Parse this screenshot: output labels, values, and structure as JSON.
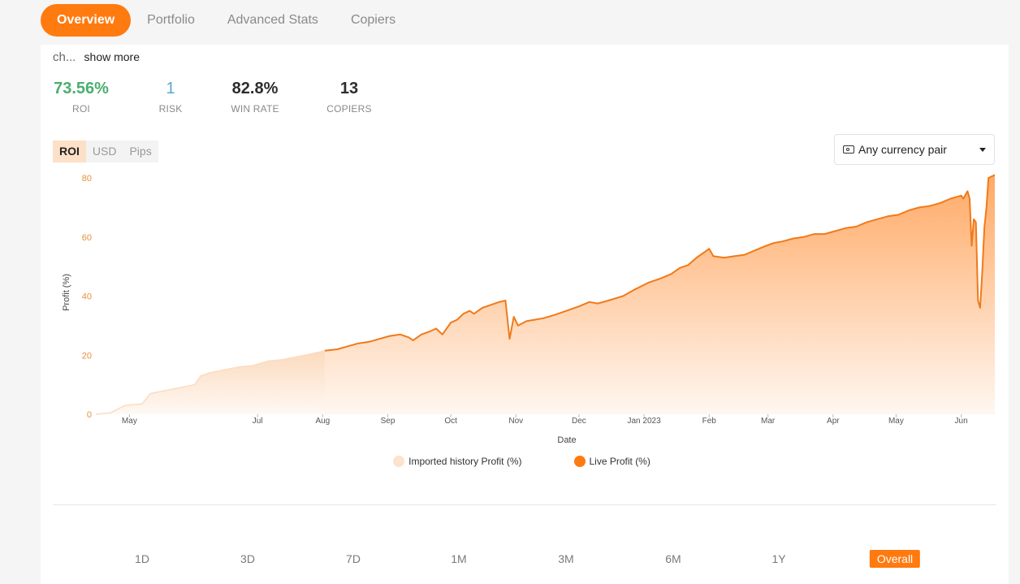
{
  "tabs": [
    {
      "label": "Overview",
      "active": true
    },
    {
      "label": "Portfolio",
      "active": false
    },
    {
      "label": "Advanced Stats",
      "active": false
    },
    {
      "label": "Copiers",
      "active": false
    }
  ],
  "description": {
    "truncated": "ch...",
    "show_more": "show more"
  },
  "stats": {
    "roi": {
      "value": "73.56%",
      "label": "ROI"
    },
    "risk": {
      "value": "1",
      "label": "RISK"
    },
    "win_rate": {
      "value": "82.8%",
      "label": "WIN RATE"
    },
    "copiers": {
      "value": "13",
      "label": "COPIERS"
    }
  },
  "metric_toggle": [
    {
      "label": "ROI",
      "active": true
    },
    {
      "label": "USD",
      "active": false
    },
    {
      "label": "Pips",
      "active": false
    }
  ],
  "currency_select": {
    "value": "Any currency pair",
    "icon": "cash-icon"
  },
  "colors": {
    "accent": "#ff7a0f",
    "imported": "#fde3cc",
    "roi": "#4cae6e",
    "risk": "#58a6d8"
  },
  "chart_data": {
    "type": "area",
    "xlabel": "Date",
    "ylabel": "Profit (%)",
    "ylim": [
      0,
      80
    ],
    "yticks": [
      0,
      20,
      40,
      60,
      80
    ],
    "x_tick_labels": [
      "May",
      "Jul",
      "Aug",
      "Sep",
      "Oct",
      "Nov",
      "Dec",
      "Jan 2023",
      "Feb",
      "Mar",
      "Apr",
      "May",
      "Jun"
    ],
    "x_tick_dates": [
      "2022-05-01",
      "2022-07-01",
      "2022-08-01",
      "2022-09-01",
      "2022-10-01",
      "2022-11-01",
      "2022-12-01",
      "2023-01-01",
      "2023-02-01",
      "2023-03-01",
      "2023-04-01",
      "2023-05-01",
      "2023-06-01"
    ],
    "x_range": [
      "2022-04-15",
      "2023-06-17"
    ],
    "series": [
      {
        "name": "Imported history Profit (%)",
        "color": "#fde3cc",
        "points": [
          [
            "2022-04-15",
            0
          ],
          [
            "2022-04-22",
            0.5
          ],
          [
            "2022-04-29",
            3
          ],
          [
            "2022-05-07",
            3.5
          ],
          [
            "2022-05-11",
            7
          ],
          [
            "2022-05-18",
            8
          ],
          [
            "2022-05-25",
            9
          ],
          [
            "2022-06-01",
            10
          ],
          [
            "2022-06-04",
            13
          ],
          [
            "2022-06-08",
            14
          ],
          [
            "2022-06-15",
            15
          ],
          [
            "2022-06-22",
            16
          ],
          [
            "2022-06-29",
            16.5
          ],
          [
            "2022-07-06",
            18
          ],
          [
            "2022-07-13",
            18.5
          ],
          [
            "2022-07-20",
            19.5
          ],
          [
            "2022-07-27",
            20.5
          ],
          [
            "2022-08-02",
            21.5
          ]
        ]
      },
      {
        "name": "Live Profit (%)",
        "color": "#ff7a0f",
        "points": [
          [
            "2022-08-02",
            21.5
          ],
          [
            "2022-08-08",
            22
          ],
          [
            "2022-08-13",
            23
          ],
          [
            "2022-08-18",
            24
          ],
          [
            "2022-08-23",
            24.5
          ],
          [
            "2022-08-28",
            25.5
          ],
          [
            "2022-09-02",
            26.5
          ],
          [
            "2022-09-07",
            27
          ],
          [
            "2022-09-11",
            26
          ],
          [
            "2022-09-13",
            25
          ],
          [
            "2022-09-17",
            27
          ],
          [
            "2022-09-21",
            28
          ],
          [
            "2022-09-24",
            29
          ],
          [
            "2022-09-27",
            27
          ],
          [
            "2022-10-01",
            31
          ],
          [
            "2022-10-04",
            32
          ],
          [
            "2022-10-07",
            34
          ],
          [
            "2022-10-10",
            35
          ],
          [
            "2022-10-12",
            34
          ],
          [
            "2022-10-16",
            36
          ],
          [
            "2022-10-20",
            37
          ],
          [
            "2022-10-24",
            38
          ],
          [
            "2022-10-27",
            38.5
          ],
          [
            "2022-10-29",
            25.5
          ],
          [
            "2022-10-31",
            33
          ],
          [
            "2022-11-02",
            30
          ],
          [
            "2022-11-06",
            31.5
          ],
          [
            "2022-11-10",
            32
          ],
          [
            "2022-11-14",
            32.5
          ],
          [
            "2022-11-19",
            33.5
          ],
          [
            "2022-11-25",
            35
          ],
          [
            "2022-12-01",
            36.5
          ],
          [
            "2022-12-06",
            38
          ],
          [
            "2022-12-10",
            37.5
          ],
          [
            "2022-12-15",
            38.5
          ],
          [
            "2022-12-22",
            40
          ],
          [
            "2022-12-27",
            42
          ],
          [
            "2023-01-03",
            44.5
          ],
          [
            "2023-01-09",
            46
          ],
          [
            "2023-01-14",
            47.5
          ],
          [
            "2023-01-18",
            49.5
          ],
          [
            "2023-01-22",
            50.5
          ],
          [
            "2023-01-26",
            53
          ],
          [
            "2023-01-30",
            55
          ],
          [
            "2023-02-01",
            56
          ],
          [
            "2023-02-03",
            53.5
          ],
          [
            "2023-02-08",
            53
          ],
          [
            "2023-02-13",
            53.5
          ],
          [
            "2023-02-18",
            54
          ],
          [
            "2023-02-23",
            55.5
          ],
          [
            "2023-02-28",
            57
          ],
          [
            "2023-03-04",
            58
          ],
          [
            "2023-03-08",
            58.5
          ],
          [
            "2023-03-13",
            59.5
          ],
          [
            "2023-03-18",
            60
          ],
          [
            "2023-03-23",
            61
          ],
          [
            "2023-03-28",
            61
          ],
          [
            "2023-04-02",
            62
          ],
          [
            "2023-04-07",
            63
          ],
          [
            "2023-04-12",
            63.5
          ],
          [
            "2023-04-17",
            65
          ],
          [
            "2023-04-22",
            66
          ],
          [
            "2023-04-27",
            67
          ],
          [
            "2023-05-02",
            67.5
          ],
          [
            "2023-05-07",
            69
          ],
          [
            "2023-05-12",
            70
          ],
          [
            "2023-05-17",
            70.5
          ],
          [
            "2023-05-22",
            71.5
          ],
          [
            "2023-05-27",
            73
          ],
          [
            "2023-06-01",
            74
          ],
          [
            "2023-06-02",
            73
          ],
          [
            "2023-06-04",
            75.5
          ],
          [
            "2023-06-05",
            73
          ],
          [
            "2023-06-06",
            57
          ],
          [
            "2023-06-07",
            66
          ],
          [
            "2023-06-08",
            65
          ],
          [
            "2023-06-09",
            38.5
          ],
          [
            "2023-06-10",
            36
          ],
          [
            "2023-06-11",
            48
          ],
          [
            "2023-06-12",
            63
          ],
          [
            "2023-06-13",
            70
          ],
          [
            "2023-06-14",
            80
          ],
          [
            "2023-06-17",
            81
          ]
        ]
      }
    ]
  },
  "legend": [
    {
      "label": "Imported history Profit (%)",
      "color": "#fde3cc"
    },
    {
      "label": "Live Profit (%)",
      "color": "#ff7a0f"
    }
  ],
  "periods": [
    {
      "label": "1D",
      "active": false
    },
    {
      "label": "3D",
      "active": false
    },
    {
      "label": "7D",
      "active": false
    },
    {
      "label": "1M",
      "active": false
    },
    {
      "label": "3M",
      "active": false
    },
    {
      "label": "6M",
      "active": false
    },
    {
      "label": "1Y",
      "active": false
    },
    {
      "label": "Overall",
      "active": true
    }
  ]
}
